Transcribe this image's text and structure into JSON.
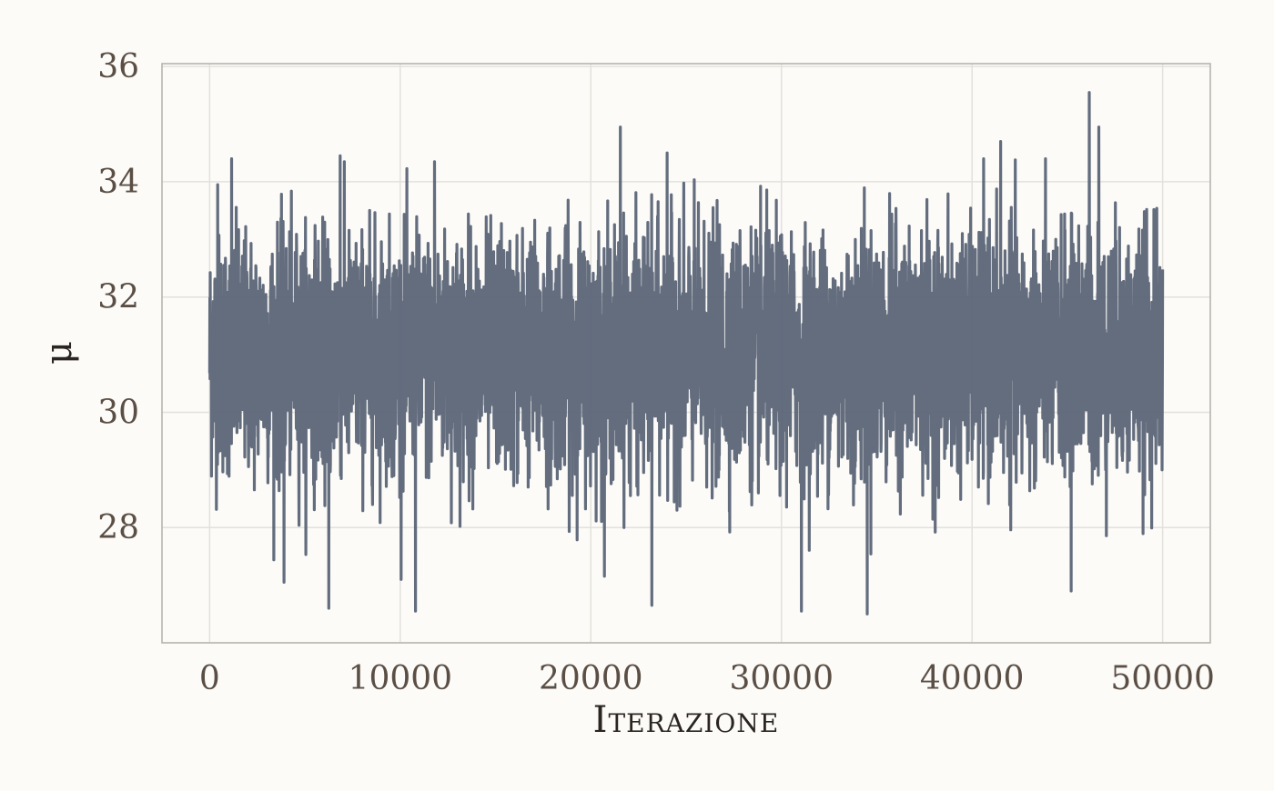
{
  "chart_data": {
    "type": "line",
    "title": "",
    "xlabel": "Iterazione",
    "ylabel": "μ",
    "xlim": [
      -2500,
      52500
    ],
    "ylim": [
      26.0,
      36.05
    ],
    "x_ticks": [
      0,
      10000,
      20000,
      30000,
      40000,
      50000
    ],
    "x_tick_labels": [
      "0",
      "10000",
      "20000",
      "30000",
      "40000",
      "50000"
    ],
    "y_ticks": [
      28,
      30,
      32,
      34,
      36
    ],
    "y_tick_labels": [
      "28",
      "30",
      "32",
      "34",
      "36"
    ],
    "grid": true,
    "legend": "none",
    "colors": {
      "series": "#5b6577",
      "grid": "#e3e1dc",
      "panel_border": "#b7b4ae",
      "background": "#fcfbf8"
    },
    "series": [
      {
        "x_start": 0,
        "x_end": 50000,
        "n_iterations": 50000,
        "mean": 31.0,
        "typical_range": [
          28.8,
          33.3
        ],
        "min": 26.5,
        "max": 35.6,
        "extremes": [
          {
            "x": 420,
            "y": 33.95
          },
          {
            "x": 1150,
            "y": 34.4
          },
          {
            "x": 3900,
            "y": 27.05
          },
          {
            "x": 6250,
            "y": 26.6
          },
          {
            "x": 6850,
            "y": 34.45
          },
          {
            "x": 10800,
            "y": 26.55
          },
          {
            "x": 11800,
            "y": 34.35
          },
          {
            "x": 21550,
            "y": 34.95
          },
          {
            "x": 23200,
            "y": 26.65
          },
          {
            "x": 24000,
            "y": 34.5
          },
          {
            "x": 31050,
            "y": 26.55
          },
          {
            "x": 34500,
            "y": 26.5
          },
          {
            "x": 41500,
            "y": 34.7
          },
          {
            "x": 45200,
            "y": 26.9
          },
          {
            "x": 46150,
            "y": 35.55
          },
          {
            "x": 46650,
            "y": 34.95
          }
        ]
      }
    ]
  }
}
